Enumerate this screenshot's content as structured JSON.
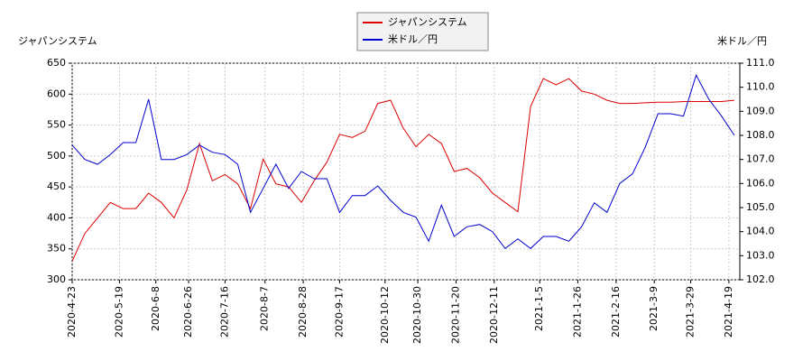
{
  "chart_data": {
    "type": "line",
    "y_label": "ジャパンシステム",
    "y2_label": "米ドル／円",
    "x": [
      "2020-4-23",
      "2020-4-30",
      "2020-5-7",
      "2020-5-14",
      "2020-5-21",
      "2020-5-28",
      "2020-6-4",
      "2020-6-11",
      "2020-6-18",
      "2020-6-25",
      "2020-7-2",
      "2020-7-9",
      "2020-7-16",
      "2020-7-23",
      "2020-7-30",
      "2020-8-6",
      "2020-8-13",
      "2020-8-20",
      "2020-8-27",
      "2020-9-3",
      "2020-9-10",
      "2020-9-17",
      "2020-9-24",
      "2020-10-1",
      "2020-10-8",
      "2020-10-15",
      "2020-10-22",
      "2020-10-29",
      "2020-11-5",
      "2020-11-12",
      "2020-11-19",
      "2020-11-26",
      "2020-12-3",
      "2020-12-10",
      "2020-12-17",
      "2020-12-24",
      "2020-12-31",
      "2021-1-7",
      "2021-1-14",
      "2021-1-21",
      "2021-1-28",
      "2021-2-4",
      "2021-2-11",
      "2021-2-18",
      "2021-2-25",
      "2021-3-4",
      "2021-3-11",
      "2021-3-18",
      "2021-3-25",
      "2021-4-1",
      "2021-4-8",
      "2021-4-15",
      "2021-4-22"
    ],
    "series": [
      {
        "name": "ジャパンシステム",
        "color": "#dd0000",
        "axis": "y",
        "values": [
          330,
          375,
          400,
          425,
          415,
          415,
          440,
          425,
          400,
          445,
          520,
          460,
          470,
          455,
          415,
          495,
          455,
          450,
          425,
          460,
          490,
          535,
          530,
          540,
          585,
          590,
          545,
          515,
          535,
          520,
          475,
          480,
          465,
          440,
          425,
          410,
          580,
          625,
          615,
          625,
          605,
          600,
          590,
          585,
          585,
          586,
          587,
          587,
          588,
          588,
          588,
          588,
          590
        ]
      },
      {
        "name": "米ドル／円",
        "color": "#0000cc",
        "axis": "y2",
        "values": [
          107.6,
          107.0,
          106.8,
          107.2,
          107.7,
          107.7,
          109.5,
          107.0,
          107.0,
          107.2,
          107.6,
          107.3,
          107.2,
          106.8,
          104.8,
          105.8,
          106.8,
          105.8,
          106.5,
          106.2,
          106.2,
          104.8,
          105.5,
          105.5,
          105.9,
          105.3,
          104.8,
          104.6,
          103.6,
          105.1,
          103.8,
          104.2,
          104.3,
          104.0,
          103.3,
          103.7,
          103.3,
          103.8,
          103.8,
          103.6,
          104.2,
          105.2,
          104.8,
          106.0,
          106.4,
          107.5,
          108.9,
          108.9,
          108.8,
          110.5,
          109.5,
          108.8,
          108.0
        ]
      }
    ],
    "xlim": [
      "2020-4-23",
      "2021-4-25"
    ],
    "xticks": [
      "2020-4-23",
      "2020-5-19",
      "2020-6-8",
      "2020-6-26",
      "2020-7-16",
      "2020-8-7",
      "2020-8-28",
      "2020-9-17",
      "2020-10-12",
      "2020-10-30",
      "2020-11-20",
      "2020-12-11",
      "2021-1-5",
      "2021-1-26",
      "2021-2-16",
      "2021-3-9",
      "2021-3-29",
      "2021-4-19"
    ],
    "ylim": [
      300,
      650
    ],
    "yticks": [
      300,
      350,
      400,
      450,
      500,
      550,
      600,
      650
    ],
    "y2lim": [
      102,
      111
    ],
    "y2ticks": [
      {
        "value": 102,
        "label": "102.0"
      },
      {
        "value": 103,
        "label": "103.0"
      },
      {
        "value": 104,
        "label": "104.0"
      },
      {
        "value": 105,
        "label": "105.0"
      },
      {
        "value": 106,
        "label": "106.0"
      },
      {
        "value": 107,
        "label": "107.0"
      },
      {
        "value": 108,
        "label": "108.0"
      },
      {
        "value": 109,
        "label": "109.0"
      },
      {
        "value": 110,
        "label": "110.0"
      },
      {
        "value": 111,
        "label": "111.0"
      }
    ],
    "grid": true
  }
}
